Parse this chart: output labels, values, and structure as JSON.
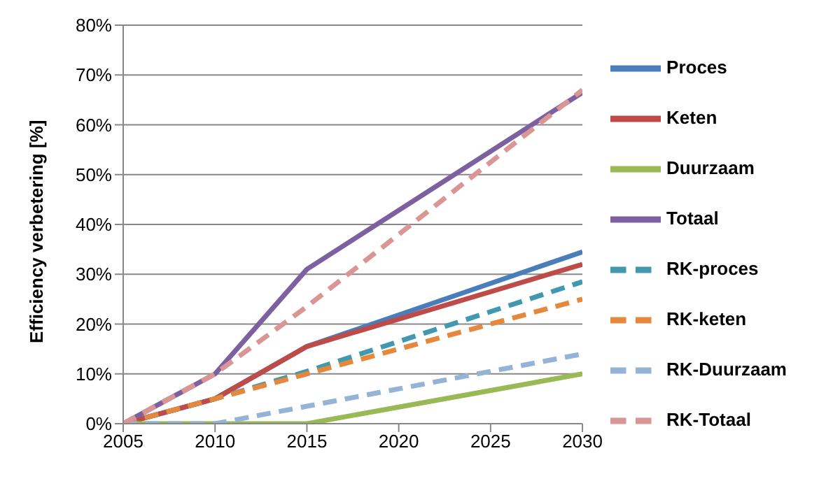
{
  "chart_data": {
    "type": "line",
    "ylabel": "Efficiency verbetering [%]",
    "x": [
      2005,
      2010,
      2015,
      2030
    ],
    "xlim": [
      2005,
      2030
    ],
    "xticks": [
      2005,
      2010,
      2015,
      2020,
      2025,
      2030
    ],
    "ylim": [
      0,
      80
    ],
    "yticks": [
      {
        "value": 0,
        "label": "0%"
      },
      {
        "value": 10,
        "label": "10%"
      },
      {
        "value": 20,
        "label": "20%"
      },
      {
        "value": 30,
        "label": "30%"
      },
      {
        "value": 40,
        "label": "40%"
      },
      {
        "value": 50,
        "label": "50%"
      },
      {
        "value": 60,
        "label": "60%"
      },
      {
        "value": 70,
        "label": "70%"
      },
      {
        "value": 80,
        "label": "80%"
      }
    ],
    "grid": "y",
    "legend": "right",
    "marker": "none",
    "series": [
      {
        "name": "Proces",
        "color": "#4a7ebb",
        "values": [
          0,
          5,
          15.5,
          34.5
        ],
        "line_style": "solid"
      },
      {
        "name": "Keten",
        "color": "#be4b48",
        "values": [
          0,
          5,
          15.5,
          32
        ],
        "line_style": "solid"
      },
      {
        "name": "Duurzaam",
        "color": "#98b954",
        "values": [
          0,
          0,
          0,
          10
        ],
        "line_style": "solid"
      },
      {
        "name": "Totaal",
        "color": "#7d60a0",
        "values": [
          0,
          10,
          31,
          66.5
        ],
        "line_style": "solid"
      },
      {
        "name": "RK-proces",
        "color": "#4198af",
        "values": [
          0,
          5,
          10.5,
          28.5
        ],
        "line_style": "dashed"
      },
      {
        "name": "RK-keten",
        "color": "#e6883c",
        "values": [
          0,
          5,
          10,
          25
        ],
        "line_style": "dashed"
      },
      {
        "name": "RK-Duurzaam",
        "color": "#95b3d7",
        "values": [
          0,
          0,
          3.5,
          14
        ],
        "line_style": "dashed"
      },
      {
        "name": "RK-Totaal",
        "color": "#d99694",
        "values": [
          0,
          10,
          23.5,
          67
        ],
        "line_style": "dashed"
      }
    ]
  }
}
